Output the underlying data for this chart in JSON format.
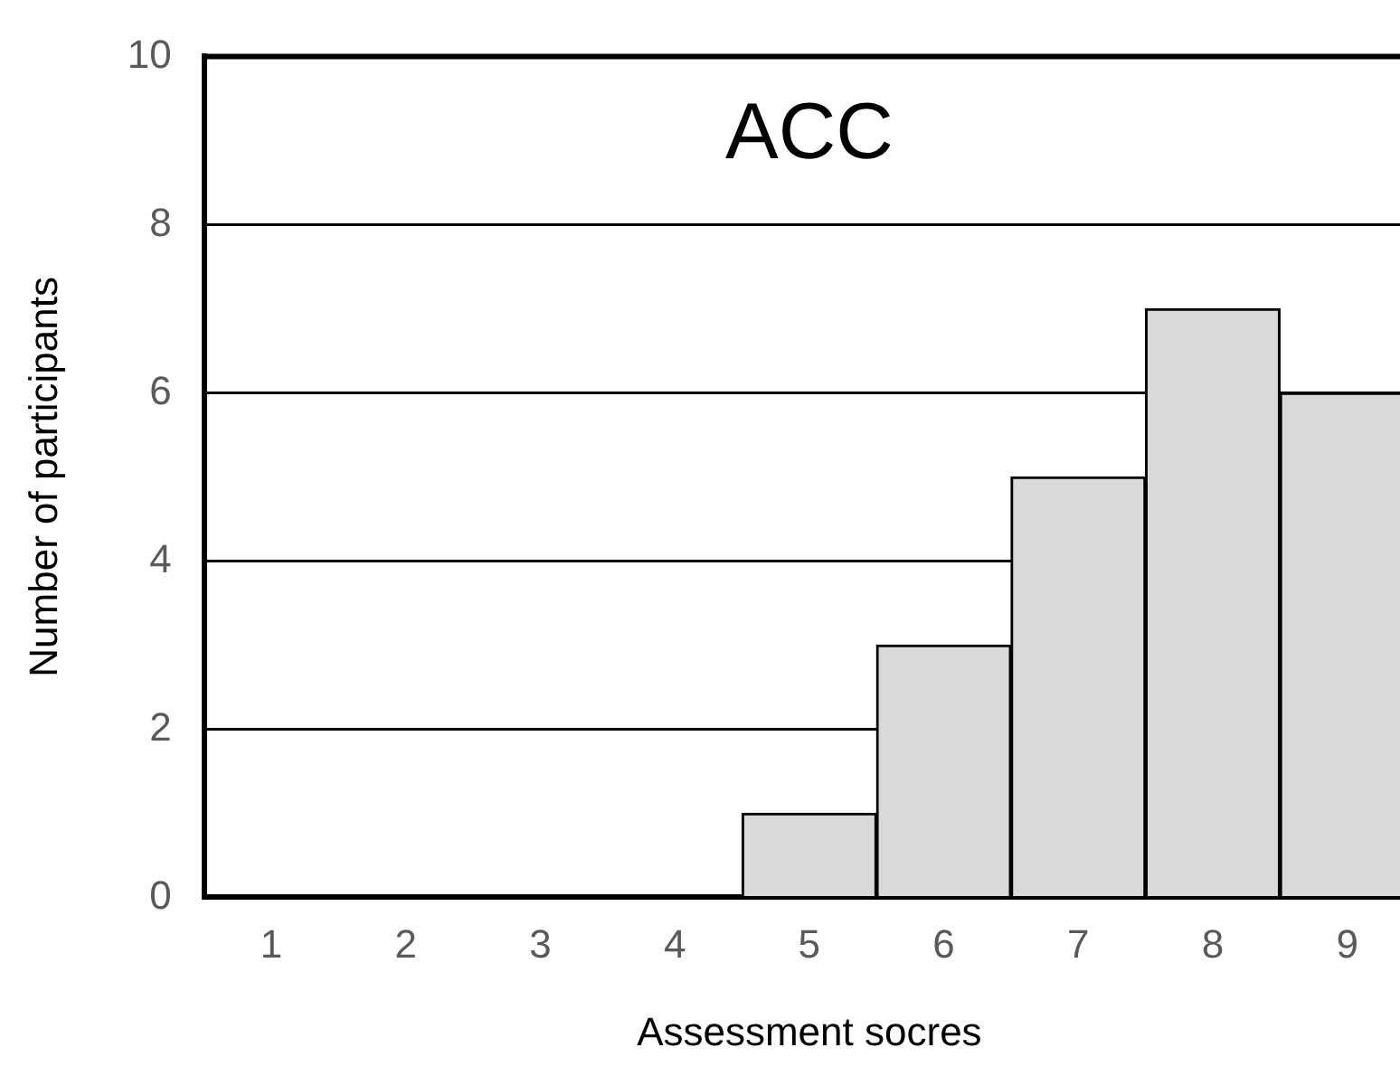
{
  "chart_data": {
    "type": "bar",
    "title": "ACC",
    "xlabel": "Assessment socres",
    "ylabel": "Number of participants",
    "categories": [
      "1",
      "2",
      "3",
      "4",
      "5",
      "6",
      "7",
      "8",
      "9"
    ],
    "values": [
      0,
      0,
      0,
      0,
      1,
      3,
      5,
      7,
      6
    ],
    "color": "#d9d9d9",
    "ylim": [
      0,
      10
    ],
    "yticks": [
      0,
      2,
      4,
      6,
      8,
      10
    ],
    "grid": "y"
  }
}
